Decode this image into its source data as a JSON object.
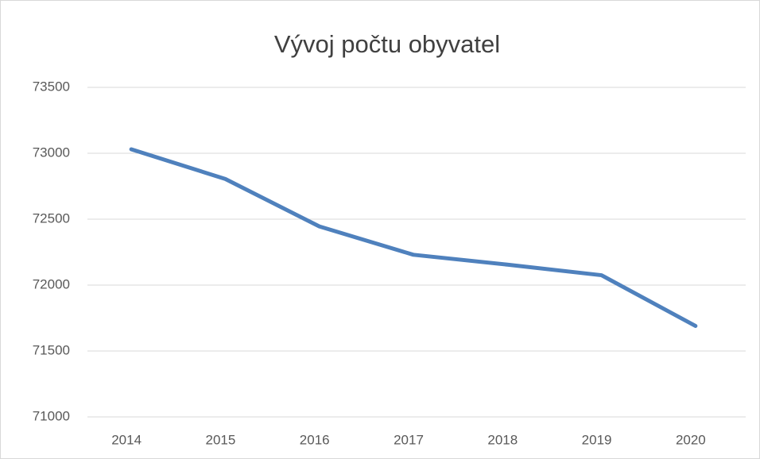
{
  "chart_data": {
    "type": "line",
    "title": "Vývoj počtu obyvatel",
    "categories": [
      "2014",
      "2015",
      "2016",
      "2017",
      "2018",
      "2019",
      "2020"
    ],
    "values": [
      73030,
      72805,
      72445,
      72230,
      72155,
      72075,
      71690
    ],
    "color": "#4f81bd",
    "ylim": [
      71000,
      73500
    ],
    "yticks": [
      71000,
      71500,
      72000,
      72500,
      73000,
      73500
    ],
    "grid": true
  }
}
